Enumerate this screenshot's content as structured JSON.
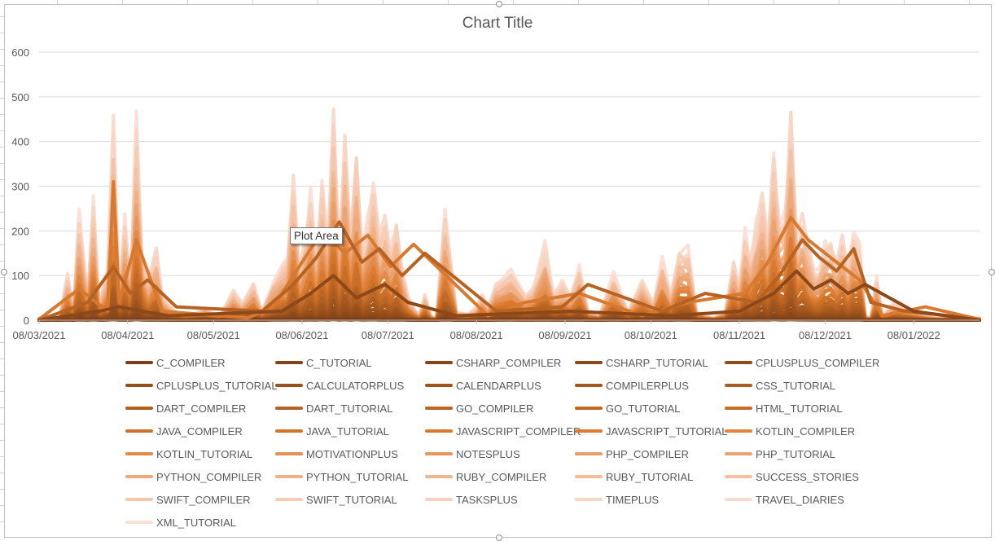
{
  "chart_data": {
    "type": "line",
    "title": "Chart Title",
    "xlabel": "",
    "ylabel": "",
    "ylim": [
      0,
      600
    ],
    "yticks": [
      0,
      100,
      200,
      300,
      400,
      500,
      600
    ],
    "x_tick_labels": [
      "08/03/2021",
      "08/04/2021",
      "08/05/2021",
      "08/06/2021",
      "08/07/2021",
      "08/08/2021",
      "08/09/2021",
      "08/10/2021",
      "08/11/2021",
      "08/12/2021",
      "08/01/2022"
    ],
    "grid": "horizontal",
    "legend_position": "bottom",
    "x_range": [
      "2021-03-08",
      "2022-01-31"
    ],
    "series": [
      {
        "name": "C_COMPILER",
        "color": "#7f3f16"
      },
      {
        "name": "C_TUTORIAL",
        "color": "#83421a"
      },
      {
        "name": "CSHARP_COMPILER",
        "color": "#88451a"
      },
      {
        "name": "CSHARP_TUTORIAL",
        "color": "#8c4819"
      },
      {
        "name": "CPLUSPLUS_COMPILER",
        "color": "#924b1a"
      },
      {
        "name": "CPLUSPLUS_TUTORIAL",
        "color": "#964e1b"
      },
      {
        "name": "CALCULATORPLUS",
        "color": "#9b511c"
      },
      {
        "name": "CALENDARPLUS",
        "color": "#a0541d"
      },
      {
        "name": "COMPILERPLUS",
        "color": "#a5581e"
      },
      {
        "name": "CSS_TUTORIAL",
        "color": "#ab5c20"
      },
      {
        "name": "DART_COMPILER",
        "color": "#b05f21"
      },
      {
        "name": "DART_TUTORIAL",
        "color": "#b66223"
      },
      {
        "name": "GO_COMPILER",
        "color": "#bb6624"
      },
      {
        "name": "GO_TUTORIAL",
        "color": "#c16a26"
      },
      {
        "name": "HTML_TUTORIAL",
        "color": "#c66d28"
      },
      {
        "name": "JAVA_COMPILER",
        "color": "#cc712a"
      },
      {
        "name": "JAVA_TUTORIAL",
        "color": "#d1752c"
      },
      {
        "name": "JAVASCRIPT_COMPILER",
        "color": "#d7792e"
      },
      {
        "name": "JAVASCRIPT_TUTORIAL",
        "color": "#dc7d33"
      },
      {
        "name": "KOTLIN_COMPILER",
        "color": "#e0843e"
      },
      {
        "name": "KOTLIN_TUTORIAL",
        "color": "#e38a48"
      },
      {
        "name": "MOTIVATIONPLUS",
        "color": "#e59153"
      },
      {
        "name": "NOTESPLUS",
        "color": "#e7975d"
      },
      {
        "name": "PHP_COMPILER",
        "color": "#e99d68"
      },
      {
        "name": "PHP_TUTORIAL",
        "color": "#eba372"
      },
      {
        "name": "PYTHON_COMPILER",
        "color": "#edaa7c"
      },
      {
        "name": "PYTHON_TUTORIAL",
        "color": "#efb086"
      },
      {
        "name": "RUBY_COMPILER",
        "color": "#f1b690"
      },
      {
        "name": "RUBY_TUTORIAL",
        "color": "#f2bc99"
      },
      {
        "name": "SUCCESS_STORIES",
        "color": "#f3c1a3"
      },
      {
        "name": "SWIFT_COMPILER",
        "color": "#f5c6ac"
      },
      {
        "name": "SWIFT_TUTORIAL",
        "color": "#f6ccb5"
      },
      {
        "name": "TASKSPLUS",
        "color": "#f7d1bd"
      },
      {
        "name": "TIMEPLUS",
        "color": "#f8d6c6"
      },
      {
        "name": "TRAVEL_DIARIES",
        "color": "#f9dbce"
      },
      {
        "name": "XML_TUTORIAL",
        "color": "#fae0d6"
      }
    ],
    "envelope": {
      "x": [
        "2021-03-08",
        "2021-03-12",
        "2021-03-15",
        "2021-03-18",
        "2021-03-20",
        "2021-03-22",
        "2021-03-25",
        "2021-03-27",
        "2021-03-29",
        "2021-04-01",
        "2021-04-03",
        "2021-04-05",
        "2021-04-07",
        "2021-04-09",
        "2021-04-11",
        "2021-04-13",
        "2021-04-15",
        "2021-04-18",
        "2021-04-20",
        "2021-04-22",
        "2021-04-25",
        "2021-04-28",
        "2021-05-01",
        "2021-05-05",
        "2021-05-10",
        "2021-05-15",
        "2021-05-18",
        "2021-05-22",
        "2021-05-25",
        "2021-05-29",
        "2021-06-01",
        "2021-06-03",
        "2021-06-05",
        "2021-06-07",
        "2021-06-09",
        "2021-06-11",
        "2021-06-13",
        "2021-06-15",
        "2021-06-17",
        "2021-06-19",
        "2021-06-21",
        "2021-06-23",
        "2021-06-25",
        "2021-06-27",
        "2021-06-29",
        "2021-07-01",
        "2021-07-03",
        "2021-07-05",
        "2021-07-07",
        "2021-07-09",
        "2021-07-11",
        "2021-07-13",
        "2021-07-15",
        "2021-07-17",
        "2021-07-19",
        "2021-07-21",
        "2021-07-23",
        "2021-07-25",
        "2021-07-28",
        "2021-08-01",
        "2021-08-05",
        "2021-08-08",
        "2021-08-10",
        "2021-08-12",
        "2021-08-15",
        "2021-08-20",
        "2021-08-25",
        "2021-08-28",
        "2021-09-01",
        "2021-09-04",
        "2021-09-07",
        "2021-09-10",
        "2021-09-13",
        "2021-09-16",
        "2021-09-20",
        "2021-09-25",
        "2021-09-30",
        "2021-10-05",
        "2021-10-09",
        "2021-10-12",
        "2021-10-15",
        "2021-10-18",
        "2021-10-21",
        "2021-10-24",
        "2021-10-27",
        "2021-10-30",
        "2021-11-03",
        "2021-11-06",
        "2021-11-08",
        "2021-11-10",
        "2021-11-12",
        "2021-11-14",
        "2021-11-16",
        "2021-11-18",
        "2021-11-20",
        "2021-11-22",
        "2021-11-24",
        "2021-11-26",
        "2021-11-28",
        "2021-11-30",
        "2021-12-02",
        "2021-12-04",
        "2021-12-06",
        "2021-12-08",
        "2021-12-10",
        "2021-12-12",
        "2021-12-14",
        "2021-12-16",
        "2021-12-18",
        "2021-12-20",
        "2021-12-22",
        "2021-12-24",
        "2021-12-26",
        "2021-12-28",
        "2022-01-01",
        "2022-01-05",
        "2022-01-08",
        "2022-01-12",
        "2022-01-16",
        "2022-01-20",
        "2022-01-25",
        "2022-01-31"
      ],
      "y": [
        5,
        10,
        0,
        110,
        20,
        250,
        60,
        280,
        40,
        120,
        480,
        60,
        240,
        80,
        470,
        160,
        90,
        170,
        60,
        40,
        20,
        10,
        15,
        30,
        5,
        70,
        40,
        90,
        20,
        100,
        130,
        150,
        340,
        120,
        200,
        300,
        140,
        330,
        180,
        500,
        140,
        450,
        200,
        420,
        160,
        250,
        330,
        200,
        250,
        170,
        240,
        120,
        60,
        30,
        10,
        60,
        10,
        5,
        260,
        20,
        15,
        30,
        60,
        30,
        90,
        120,
        60,
        80,
        180,
        60,
        90,
        60,
        130,
        20,
        10,
        110,
        20,
        90,
        40,
        150,
        60,
        170,
        170,
        20,
        10,
        5,
        20,
        140,
        80,
        210,
        150,
        230,
        300,
        190,
        400,
        240,
        250,
        510,
        200,
        250,
        180,
        120,
        130,
        180,
        190,
        140,
        200,
        120,
        210,
        200,
        10,
        5,
        100,
        10,
        40,
        30,
        20,
        10,
        5,
        5,
        5,
        5
      ]
    },
    "layers": [
      {
        "x": [
          "2021-03-08",
          "2021-03-22",
          "2021-04-01",
          "2021-04-03",
          "2021-04-05",
          "2021-04-11",
          "2021-04-20",
          "2021-05-20",
          "2021-05-29",
          "2021-06-07",
          "2021-06-15",
          "2021-06-23",
          "2021-07-01",
          "2021-07-09",
          "2021-07-17",
          "2021-08-12",
          "2021-08-25",
          "2021-09-04",
          "2021-09-13",
          "2021-10-05",
          "2021-10-21",
          "2021-11-10",
          "2021-11-18",
          "2021-11-26",
          "2021-12-02",
          "2021-12-08",
          "2021-12-14",
          "2021-12-20",
          "2021-12-28",
          "2022-01-12",
          "2022-01-31"
        ],
        "y": [
          2,
          70,
          20,
          310,
          40,
          180,
          20,
          5,
          30,
          120,
          200,
          150,
          190,
          120,
          170,
          10,
          40,
          50,
          60,
          10,
          40,
          60,
          130,
          230,
          180,
          150,
          120,
          90,
          10,
          30,
          2
        ]
      },
      {
        "x": [
          "2021-03-08",
          "2021-03-25",
          "2021-04-03",
          "2021-04-09",
          "2021-04-15",
          "2021-04-25",
          "2021-05-25",
          "2021-06-05",
          "2021-06-13",
          "2021-06-21",
          "2021-06-29",
          "2021-07-05",
          "2021-07-13",
          "2021-07-21",
          "2021-08-15",
          "2021-09-07",
          "2021-09-16",
          "2021-10-12",
          "2021-10-27",
          "2021-11-14",
          "2021-11-22",
          "2021-11-30",
          "2021-12-06",
          "2021-12-12",
          "2021-12-18",
          "2021-12-24",
          "2022-01-05",
          "2022-01-20",
          "2022-01-31"
        ],
        "y": [
          0,
          40,
          120,
          60,
          90,
          30,
          20,
          80,
          140,
          220,
          130,
          160,
          100,
          150,
          20,
          30,
          80,
          20,
          60,
          40,
          100,
          180,
          140,
          110,
          160,
          40,
          20,
          10,
          0
        ]
      },
      {
        "x": [
          "2021-03-08",
          "2021-03-29",
          "2021-04-05",
          "2021-04-13",
          "2021-04-22",
          "2021-06-01",
          "2021-06-11",
          "2021-06-19",
          "2021-06-27",
          "2021-07-07",
          "2021-07-15",
          "2021-08-01",
          "2021-09-10",
          "2021-10-15",
          "2021-11-08",
          "2021-11-20",
          "2021-11-28",
          "2021-12-04",
          "2021-12-10",
          "2021-12-16",
          "2021-12-22",
          "2022-01-08",
          "2022-01-31"
        ],
        "y": [
          0,
          20,
          30,
          20,
          10,
          20,
          60,
          100,
          50,
          80,
          40,
          10,
          20,
          10,
          20,
          60,
          110,
          70,
          90,
          60,
          80,
          20,
          0
        ]
      }
    ]
  },
  "legend_columns": 5
}
